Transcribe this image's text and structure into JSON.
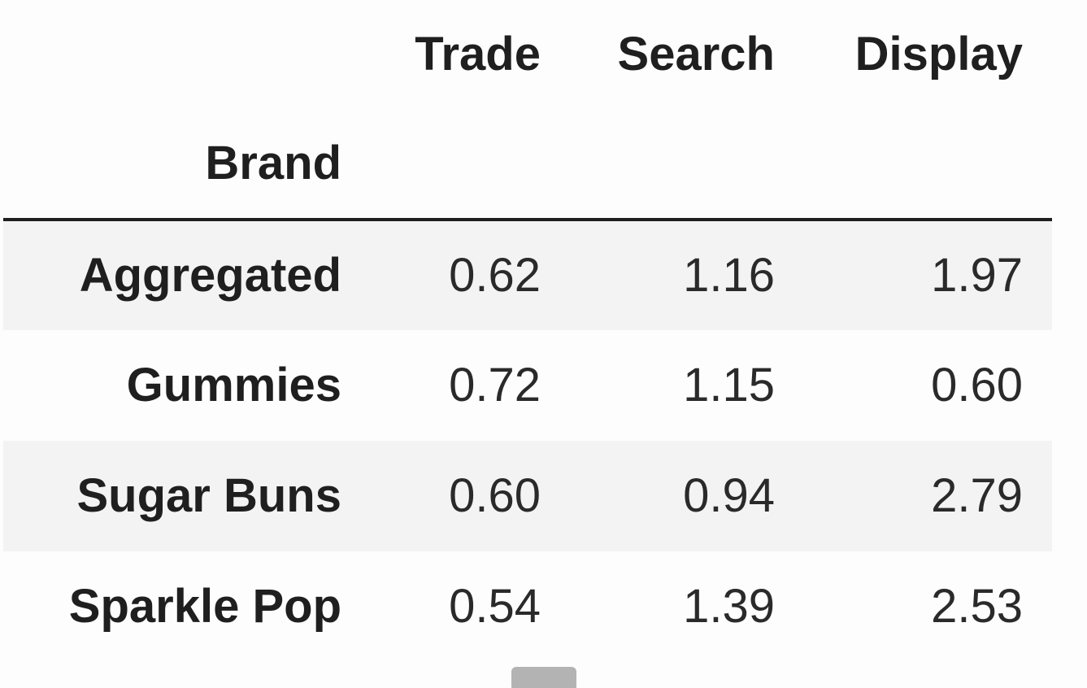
{
  "table": {
    "columns": [
      "Trade",
      "Search",
      "Display"
    ],
    "index_name": "Brand",
    "rows": [
      {
        "label": "Aggregated",
        "values": [
          "0.62",
          "1.16",
          "1.97"
        ]
      },
      {
        "label": "Gummies",
        "values": [
          "0.72",
          "1.15",
          "0.60"
        ]
      },
      {
        "label": "Sugar Buns",
        "values": [
          "0.60",
          "0.94",
          "2.79"
        ]
      },
      {
        "label": "Sparkle Pop",
        "values": [
          "0.54",
          "1.39",
          "2.53"
        ]
      }
    ]
  },
  "colors": {
    "background": "#fdfdfd",
    "stripe": "#f3f3f3",
    "text": "#1f1f1f",
    "rule": "#1f1f1f",
    "scrollbar": "#b3b3b3"
  }
}
